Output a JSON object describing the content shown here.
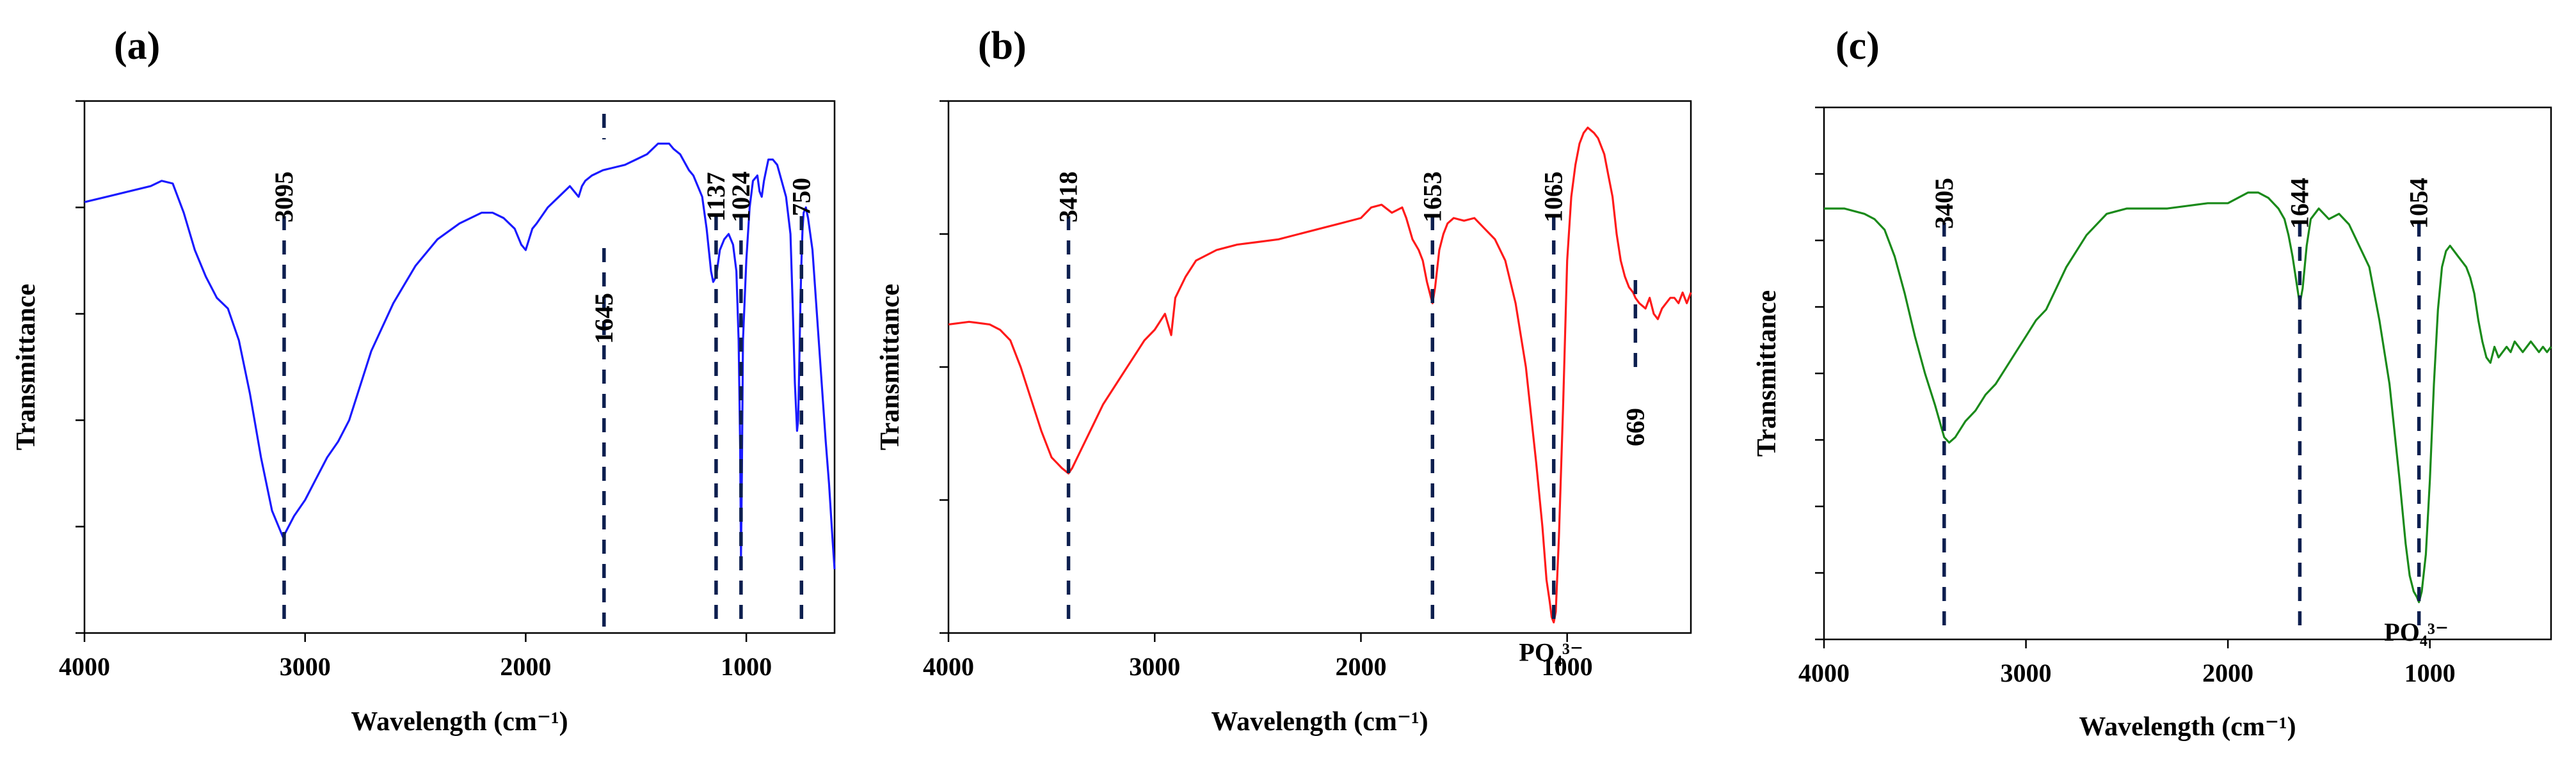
{
  "chart_data": [
    {
      "type": "line",
      "panel_label": "(a)",
      "title": "",
      "xlabel": "Wavelength (cm⁻¹)",
      "ylabel": "Transmittance",
      "xlim": [
        4000,
        600
      ],
      "ylim": [
        0,
        100
      ],
      "x_ticks": [
        4000,
        3000,
        2000,
        1000
      ],
      "x_tick_labels": [
        "4000",
        "3000",
        "2000",
        "1000"
      ],
      "y_ticks": [
        0,
        20,
        40,
        60,
        80,
        100
      ],
      "color": "#1a1aff",
      "series": [
        {
          "name": "(a)",
          "x": [
            4000,
            3900,
            3800,
            3700,
            3650,
            3600,
            3550,
            3500,
            3450,
            3400,
            3350,
            3300,
            3250,
            3200,
            3150,
            3100,
            3050,
            3000,
            2950,
            2900,
            2850,
            2800,
            2700,
            2600,
            2500,
            2400,
            2300,
            2200,
            2150,
            2100,
            2050,
            2020,
            2000,
            1985,
            1970,
            1950,
            1900,
            1850,
            1800,
            1760,
            1745,
            1730,
            1700,
            1650,
            1600,
            1550,
            1500,
            1450,
            1400,
            1350,
            1330,
            1300,
            1260,
            1240,
            1220,
            1200,
            1180,
            1160,
            1150,
            1137,
            1120,
            1100,
            1080,
            1060,
            1045,
            1035,
            1028,
            1024,
            1020,
            1015,
            1000,
            985,
            970,
            950,
            940,
            930,
            920,
            910,
            900,
            880,
            860,
            840,
            820,
            800,
            790,
            780,
            770,
            765,
            760,
            755,
            750,
            745,
            740,
            730,
            720,
            700,
            680,
            660,
            640,
            625,
            610,
            600
          ],
          "y": [
            81,
            82,
            83,
            84,
            85,
            84.5,
            79,
            72,
            67,
            63,
            61,
            55,
            45,
            33,
            23,
            18,
            22,
            25,
            29,
            33,
            36,
            40,
            53,
            62,
            69,
            74,
            77,
            79,
            79,
            78,
            76,
            73,
            72,
            74,
            76,
            77,
            80,
            82,
            84,
            82,
            84,
            85,
            86,
            87,
            87.5,
            88,
            89,
            90,
            92,
            92,
            91,
            90,
            87,
            86,
            84,
            82,
            76,
            68,
            66,
            67,
            72,
            74,
            75,
            73,
            68,
            55,
            35,
            14,
            30,
            55,
            70,
            80,
            85,
            86,
            83,
            82,
            85,
            87,
            89,
            89,
            88,
            85,
            82,
            75,
            62,
            47,
            38,
            40,
            50,
            62,
            70,
            76,
            79,
            80,
            78,
            72,
            60,
            48,
            36,
            28,
            18,
            12
          ]
        }
      ],
      "peak_markers": [
        {
          "x": 3095,
          "label": "3095",
          "label_pos": "above"
        },
        {
          "x": 1645,
          "label": "1645",
          "label_pos": "below"
        },
        {
          "x": 1137,
          "label": "1137",
          "label_pos": "above"
        },
        {
          "x": 1024,
          "label": "1024",
          "label_pos": "above"
        },
        {
          "x": 750,
          "label": "750",
          "label_pos": "above"
        }
      ],
      "ion_label": ""
    },
    {
      "type": "line",
      "panel_label": "(b)",
      "title": "",
      "xlabel": "Wavelength (cm⁻¹)",
      "ylabel": "Transmittance",
      "xlim": [
        4000,
        400
      ],
      "ylim": [
        0,
        100
      ],
      "x_ticks": [
        4000,
        3000,
        2000,
        1000
      ],
      "x_tick_labels": [
        "4000",
        "3000",
        "2000",
        "1000"
      ],
      "y_ticks": [
        0,
        25,
        50,
        75,
        100
      ],
      "color": "#ff1a1a",
      "series": [
        {
          "name": "(b)",
          "x": [
            4000,
            3900,
            3800,
            3750,
            3700,
            3650,
            3600,
            3550,
            3500,
            3450,
            3418,
            3400,
            3350,
            3300,
            3250,
            3200,
            3150,
            3100,
            3050,
            3000,
            2950,
            2920,
            2900,
            2850,
            2800,
            2700,
            2600,
            2500,
            2400,
            2300,
            2200,
            2100,
            2000,
            1950,
            1900,
            1850,
            1800,
            1780,
            1750,
            1720,
            1700,
            1680,
            1660,
            1653,
            1640,
            1620,
            1600,
            1580,
            1550,
            1500,
            1450,
            1400,
            1350,
            1300,
            1250,
            1200,
            1150,
            1120,
            1100,
            1085,
            1075,
            1065,
            1055,
            1040,
            1020,
            1000,
            980,
            960,
            940,
            920,
            900,
            870,
            850,
            820,
            800,
            780,
            760,
            740,
            720,
            700,
            680,
            669,
            650,
            620,
            600,
            580,
            560,
            540,
            520,
            500,
            480,
            460,
            440,
            420,
            400
          ],
          "y": [
            58,
            58.5,
            58,
            57,
            55,
            50,
            44,
            38,
            33,
            31,
            30,
            31,
            35,
            39,
            43,
            46,
            49,
            52,
            55,
            57,
            60,
            56,
            63,
            67,
            70,
            72,
            73,
            73.5,
            74,
            75,
            76,
            77,
            78,
            80,
            80.5,
            79,
            80,
            78,
            74,
            72,
            70,
            66,
            63,
            62,
            65,
            72,
            75,
            77,
            78,
            77.5,
            78,
            76,
            74,
            70,
            62,
            50,
            32,
            20,
            10,
            6,
            3,
            2,
            4,
            18,
            42,
            70,
            82,
            88,
            92,
            94,
            95,
            94,
            93,
            90,
            86,
            82,
            75,
            70,
            67,
            65,
            64,
            63,
            62,
            61,
            63,
            60,
            59,
            61,
            62,
            63,
            63,
            62,
            64,
            62,
            64
          ]
        }
      ],
      "peak_markers": [
        {
          "x": 3418,
          "label": "3418",
          "label_pos": "above"
        },
        {
          "x": 1653,
          "label": "1653",
          "label_pos": "above"
        },
        {
          "x": 1065,
          "label": "1065",
          "label_pos": "above"
        },
        {
          "x": 669,
          "label": "669",
          "label_pos": "below"
        }
      ],
      "ion_label": "PO₄³⁻"
    },
    {
      "type": "line",
      "panel_label": "(c)",
      "title": "",
      "xlabel": "Wavelength (cm⁻¹)",
      "ylabel": "Transmittance",
      "xlim": [
        4000,
        400
      ],
      "ylim": [
        0,
        100
      ],
      "x_ticks": [
        4000,
        3000,
        2000,
        1000
      ],
      "x_tick_labels": [
        "4000",
        "3000",
        "2000",
        "1000"
      ],
      "y_ticks": [
        0,
        12.5,
        25,
        37.5,
        50,
        62.5,
        75,
        87.5,
        100
      ],
      "color": "#1a8a1a",
      "series": [
        {
          "name": "(c)",
          "x": [
            4000,
            3900,
            3800,
            3750,
            3700,
            3650,
            3600,
            3550,
            3500,
            3450,
            3405,
            3380,
            3350,
            3300,
            3250,
            3200,
            3150,
            3100,
            3050,
            3000,
            2950,
            2900,
            2850,
            2800,
            2700,
            2600,
            2500,
            2400,
            2300,
            2200,
            2100,
            2000,
            1950,
            1900,
            1850,
            1800,
            1750,
            1720,
            1700,
            1680,
            1660,
            1644,
            1630,
            1610,
            1590,
            1570,
            1550,
            1500,
            1450,
            1400,
            1350,
            1300,
            1250,
            1200,
            1150,
            1120,
            1100,
            1080,
            1065,
            1054,
            1040,
            1020,
            1000,
            980,
            960,
            940,
            920,
            900,
            880,
            860,
            840,
            820,
            800,
            780,
            760,
            740,
            720,
            700,
            680,
            660,
            640,
            620,
            600,
            580,
            560,
            540,
            520,
            500,
            480,
            460,
            440,
            420,
            400
          ],
          "y": [
            81,
            81,
            80,
            79,
            77,
            72,
            65,
            57,
            50,
            44,
            38,
            37,
            38,
            41,
            43,
            46,
            48,
            51,
            54,
            57,
            60,
            62,
            66,
            70,
            76,
            80,
            81,
            81,
            81,
            81.5,
            82,
            82,
            83,
            84,
            84,
            83,
            81,
            79,
            76,
            72,
            67,
            63,
            66,
            74,
            79,
            80,
            81,
            79,
            80,
            78,
            74,
            70,
            60,
            48,
            30,
            18,
            12,
            9,
            8,
            7,
            9,
            16,
            30,
            48,
            62,
            70,
            73,
            74,
            73,
            72,
            71,
            70,
            68,
            65,
            60,
            56,
            53,
            52,
            55,
            53,
            54,
            55,
            54,
            56,
            55,
            54,
            55,
            56,
            55,
            54,
            55,
            54,
            55
          ]
        }
      ],
      "peak_markers": [
        {
          "x": 3405,
          "label": "3405",
          "label_pos": "above"
        },
        {
          "x": 1644,
          "label": "1644",
          "label_pos": "above"
        },
        {
          "x": 1054,
          "label": "1054",
          "label_pos": "above"
        }
      ],
      "ion_label": "PO₄³⁻"
    }
  ]
}
